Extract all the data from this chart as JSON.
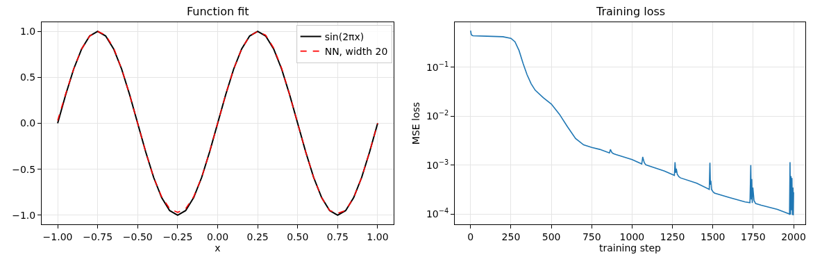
{
  "chart_data": [
    {
      "type": "line",
      "title": "Function fit",
      "xlabel": "x",
      "xlim": [
        -1.1,
        1.1
      ],
      "ylim": [
        -1.1,
        1.1
      ],
      "xticks": [
        {
          "value": -1,
          "label": "−1.00"
        },
        {
          "value": -0.75,
          "label": "−0.75"
        },
        {
          "value": -0.5,
          "label": "−0.50"
        },
        {
          "value": -0.25,
          "label": "−0.25"
        },
        {
          "value": 0,
          "label": "0.00"
        },
        {
          "value": 0.25,
          "label": "0.25"
        },
        {
          "value": 0.5,
          "label": "0.50"
        },
        {
          "value": 0.75,
          "label": "0.75"
        },
        {
          "value": 1,
          "label": "1.00"
        }
      ],
      "yticks": [
        {
          "value": -1,
          "label": "−1.0"
        },
        {
          "value": -0.5,
          "label": "−0.5"
        },
        {
          "value": 0,
          "label": "0.0"
        },
        {
          "value": 0.5,
          "label": "0.5"
        },
        {
          "value": 1,
          "label": "1.0"
        }
      ],
      "x": [
        -1,
        -0.95,
        -0.9,
        -0.85,
        -0.8,
        -0.75,
        -0.7,
        -0.65,
        -0.6,
        -0.55,
        -0.5,
        -0.45,
        -0.4,
        -0.35,
        -0.3,
        -0.25,
        -0.2,
        -0.15,
        -0.1,
        -0.05,
        0,
        0.05,
        0.1,
        0.15,
        0.2,
        0.25,
        0.3,
        0.35,
        0.4,
        0.45,
        0.5,
        0.55,
        0.6,
        0.65,
        0.7,
        0.75,
        0.8,
        0.85,
        0.9,
        0.95,
        1
      ],
      "series": [
        {
          "name": "sin(2πx)",
          "color": "#000000",
          "line_style": "solid",
          "values": [
            0,
            0.31,
            0.59,
            0.81,
            0.95,
            1,
            0.95,
            0.81,
            0.59,
            0.31,
            0,
            -0.31,
            -0.59,
            -0.81,
            -0.95,
            -1,
            -0.95,
            -0.81,
            -0.59,
            -0.31,
            0,
            0.31,
            0.59,
            0.81,
            0.95,
            1,
            0.95,
            0.81,
            0.59,
            0.31,
            0,
            -0.31,
            -0.59,
            -0.81,
            -0.95,
            -1,
            -0.95,
            -0.81,
            -0.59,
            -0.31,
            0
          ]
        },
        {
          "name": "NN, width 20",
          "color": "#ff0000",
          "line_style": "dashed",
          "values": [
            0.03,
            0.32,
            0.59,
            0.81,
            0.95,
            1,
            0.96,
            0.82,
            0.59,
            0.31,
            0,
            -0.31,
            -0.59,
            -0.8,
            -0.93,
            -0.97,
            -0.93,
            -0.8,
            -0.59,
            -0.31,
            0,
            0.31,
            0.59,
            0.81,
            0.95,
            1,
            0.96,
            0.82,
            0.6,
            0.31,
            0,
            -0.31,
            -0.59,
            -0.81,
            -0.95,
            -0.98,
            -0.95,
            -0.81,
            -0.59,
            -0.31,
            0
          ]
        }
      ],
      "grid": true,
      "legend": "top right"
    },
    {
      "type": "line",
      "title": "Training loss",
      "xlabel": "training step",
      "ylabel": "MSE loss",
      "log": "y",
      "xlim": [
        -98,
        2073
      ],
      "ylim": [
        6.2e-05,
        0.83
      ],
      "xticks": [
        0,
        250,
        500,
        750,
        1000,
        1250,
        1500,
        1750,
        2000
      ],
      "yticks": [
        {
          "value": 0.0001,
          "label": "10$^{−4}$"
        },
        {
          "value": 0.001,
          "label": "10$^{−3}$"
        },
        {
          "value": 0.01,
          "label": "10$^{−2}$"
        },
        {
          "value": 0.1,
          "label": "10$^{−1}$"
        }
      ],
      "series": [
        {
          "color": "#1f77b4",
          "line_style": "solid",
          "x": [
            0,
            4,
            8,
            15,
            100,
            200,
            250,
            275,
            300,
            325,
            350,
            375,
            400,
            450,
            500,
            550,
            600,
            650,
            700,
            750,
            800,
            860,
            866,
            870,
            876,
            885,
            900,
            1000,
            1060,
            1066,
            1070,
            1076,
            1085,
            1100,
            1200,
            1262,
            1266,
            1270,
            1274,
            1280,
            1290,
            1300,
            1400,
            1478,
            1482,
            1485,
            1488,
            1492,
            1500,
            1510,
            1600,
            1700,
            1730,
            1735,
            1738,
            1741,
            1744,
            1748,
            1755,
            1765,
            1800,
            1900,
            1970,
            1975,
            1978,
            1981,
            1984,
            1987,
            1990,
            1993,
            1996,
            1998,
            2000
          ],
          "values": [
            0.56,
            0.47,
            0.45,
            0.44,
            0.43,
            0.42,
            0.39,
            0.33,
            0.22,
            0.12,
            0.07,
            0.046,
            0.034,
            0.024,
            0.0177,
            0.011,
            0.0061,
            0.0035,
            0.0026,
            0.0023,
            0.0021,
            0.00178,
            0.0021,
            0.00195,
            0.0018,
            0.00172,
            0.00165,
            0.0013,
            0.00106,
            0.00148,
            0.0013,
            0.00112,
            0.00102,
            0.00098,
            0.00076,
            0.00062,
            0.00115,
            0.0007,
            0.00085,
            0.00065,
            0.00058,
            0.00055,
            0.00043,
            0.00032,
            0.00112,
            0.0004,
            0.00048,
            0.00032,
            0.00029,
            0.00027,
            0.00022,
            0.000178,
            0.000172,
            0.001,
            0.0002,
            0.00052,
            0.00017,
            0.00035,
            0.00019,
            0.000165,
            0.000152,
            0.000125,
            0.000102,
            0.0001,
            0.00115,
            9.8e-05,
            0.0006,
            0.00012,
            0.00055,
            9.6e-05,
            0.00035,
            9.5e-05,
            0.00028
          ]
        }
      ],
      "grid": true
    }
  ]
}
